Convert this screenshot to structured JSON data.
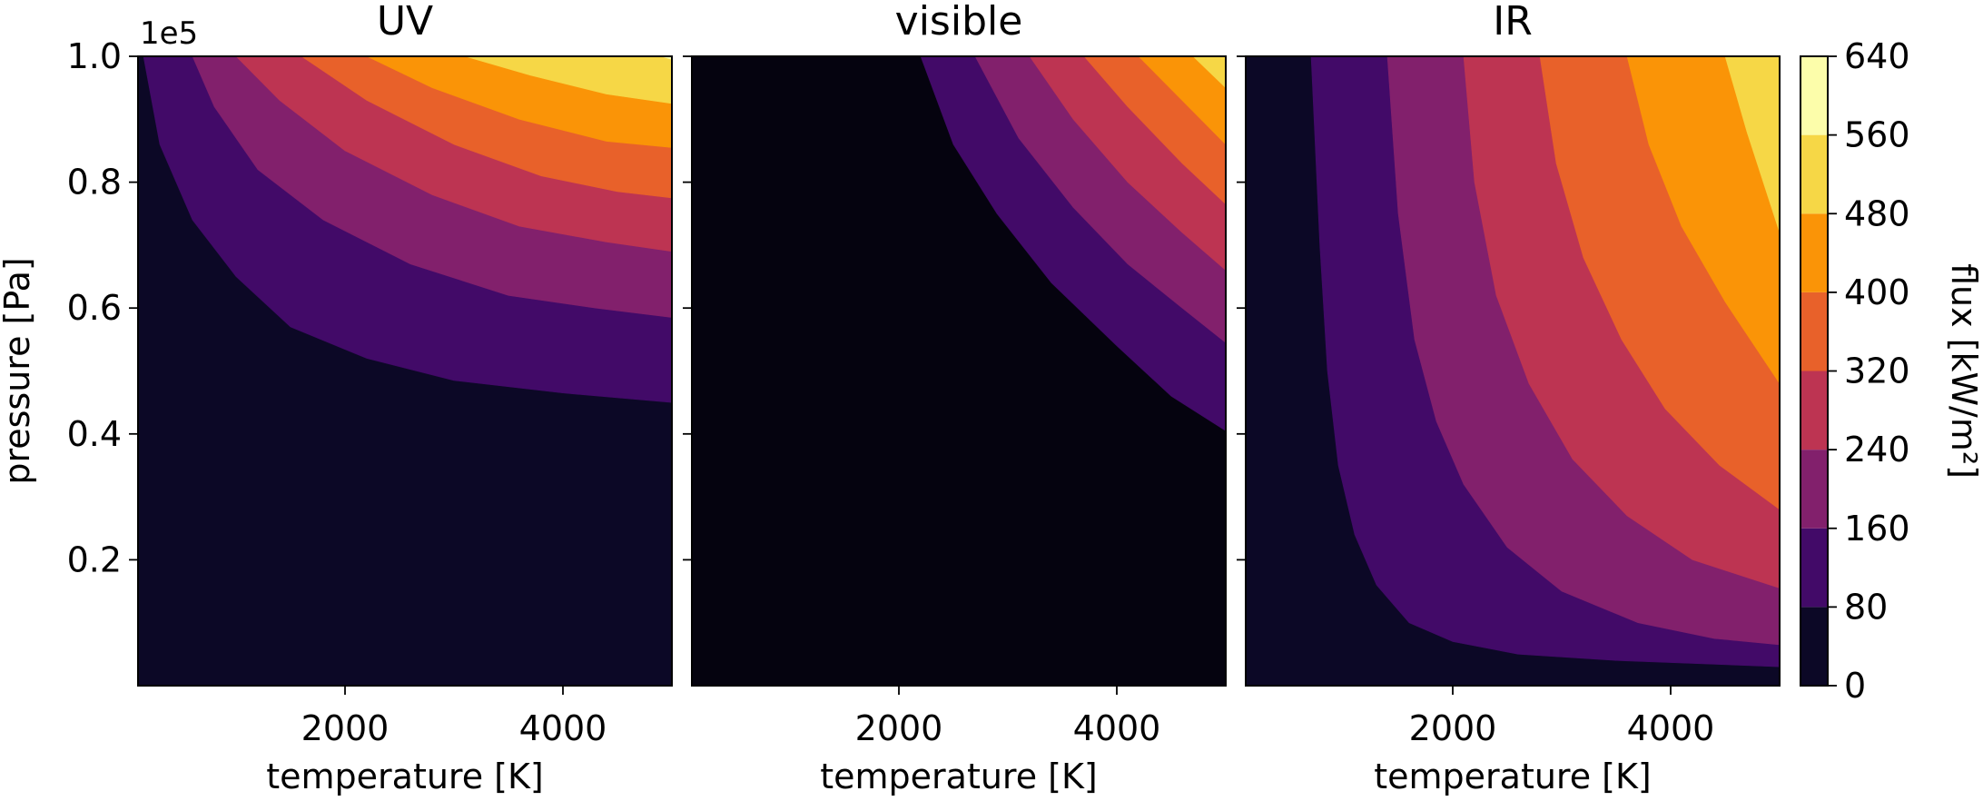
{
  "chart_data": {
    "type": "contour",
    "panels": [
      {
        "title": "UV",
        "xlabel": "temperature [K]",
        "ylabel": "pressure [Pa]",
        "y_offset_label": "1e5",
        "x_ticks": [
          2000,
          4000
        ],
        "x_tick_labels": [
          "2000",
          "4000"
        ],
        "y_ticks": [
          0.2,
          0.4,
          0.6,
          0.8,
          1.0
        ],
        "y_tick_labels": [
          "0.2",
          "0.4",
          "0.6",
          "0.8",
          "1.0"
        ],
        "boundaries": [
          {
            "level": 80,
            "points": [
              [
                150,
                1.0
              ],
              [
                300,
                0.86
              ],
              [
                600,
                0.74
              ],
              [
                1000,
                0.65
              ],
              [
                1500,
                0.57
              ],
              [
                2200,
                0.52
              ],
              [
                3000,
                0.485
              ],
              [
                4000,
                0.465
              ],
              [
                5000,
                0.45
              ]
            ]
          },
          {
            "level": 160,
            "points": [
              [
                600,
                1.0
              ],
              [
                800,
                0.92
              ],
              [
                1200,
                0.82
              ],
              [
                1800,
                0.74
              ],
              [
                2600,
                0.67
              ],
              [
                3500,
                0.62
              ],
              [
                4300,
                0.6
              ],
              [
                5000,
                0.585
              ]
            ]
          },
          {
            "level": 240,
            "points": [
              [
                1000,
                1.0
              ],
              [
                1400,
                0.93
              ],
              [
                2000,
                0.85
              ],
              [
                2800,
                0.78
              ],
              [
                3600,
                0.73
              ],
              [
                4400,
                0.705
              ],
              [
                5000,
                0.69
              ]
            ]
          },
          {
            "level": 320,
            "points": [
              [
                1600,
                1.0
              ],
              [
                2200,
                0.93
              ],
              [
                3000,
                0.86
              ],
              [
                3800,
                0.81
              ],
              [
                4500,
                0.785
              ],
              [
                5000,
                0.775
              ]
            ]
          },
          {
            "level": 400,
            "points": [
              [
                2200,
                1.0
              ],
              [
                2800,
                0.95
              ],
              [
                3600,
                0.9
              ],
              [
                4400,
                0.865
              ],
              [
                5000,
                0.855
              ]
            ]
          },
          {
            "level": 480,
            "points": [
              [
                3100,
                1.0
              ],
              [
                3700,
                0.97
              ],
              [
                4400,
                0.94
              ],
              [
                5000,
                0.925
              ]
            ]
          },
          {
            "level": 560,
            "points": [
              [
                4900,
                1.0
              ],
              [
                5000,
                0.995
              ]
            ]
          }
        ]
      },
      {
        "title": "visible",
        "xlabel": "temperature [K]",
        "x_ticks": [
          2000,
          4000
        ],
        "x_tick_labels": [
          "2000",
          "4000"
        ],
        "y_ticks": [
          0.2,
          0.4,
          0.6,
          0.8,
          1.0
        ],
        "boundaries": [
          {
            "level": 80,
            "points": [
              [
                2200,
                1.0
              ],
              [
                2500,
                0.86
              ],
              [
                2900,
                0.75
              ],
              [
                3400,
                0.64
              ],
              [
                4000,
                0.54
              ],
              [
                4500,
                0.46
              ],
              [
                5000,
                0.405
              ]
            ]
          },
          {
            "level": 160,
            "points": [
              [
                2700,
                1.0
              ],
              [
                3100,
                0.87
              ],
              [
                3600,
                0.76
              ],
              [
                4100,
                0.67
              ],
              [
                4600,
                0.6
              ],
              [
                5000,
                0.545
              ]
            ]
          },
          {
            "level": 240,
            "points": [
              [
                3200,
                1.0
              ],
              [
                3600,
                0.9
              ],
              [
                4100,
                0.8
              ],
              [
                4600,
                0.72
              ],
              [
                5000,
                0.66
              ]
            ]
          },
          {
            "level": 320,
            "points": [
              [
                3700,
                1.0
              ],
              [
                4100,
                0.92
              ],
              [
                4600,
                0.83
              ],
              [
                5000,
                0.765
              ]
            ]
          },
          {
            "level": 400,
            "points": [
              [
                4200,
                1.0
              ],
              [
                4600,
                0.93
              ],
              [
                5000,
                0.86
              ]
            ]
          },
          {
            "level": 480,
            "points": [
              [
                4700,
                1.0
              ],
              [
                5000,
                0.95
              ]
            ]
          }
        ]
      },
      {
        "title": "IR",
        "xlabel": "temperature [K]",
        "x_ticks": [
          2000,
          4000
        ],
        "x_tick_labels": [
          "2000",
          "4000"
        ],
        "y_ticks": [
          0.2,
          0.4,
          0.6,
          0.8,
          1.0
        ],
        "boundaries": [
          {
            "level": 80,
            "points": [
              [
                700,
                1.0
              ],
              [
                780,
                0.7
              ],
              [
                850,
                0.5
              ],
              [
                950,
                0.35
              ],
              [
                1100,
                0.24
              ],
              [
                1300,
                0.16
              ],
              [
                1600,
                0.1
              ],
              [
                2000,
                0.07
              ],
              [
                2600,
                0.05
              ],
              [
                3500,
                0.04
              ],
              [
                5000,
                0.03
              ]
            ]
          },
          {
            "level": 160,
            "points": [
              [
                1400,
                1.0
              ],
              [
                1500,
                0.75
              ],
              [
                1650,
                0.55
              ],
              [
                1850,
                0.42
              ],
              [
                2100,
                0.32
              ],
              [
                2500,
                0.22
              ],
              [
                3000,
                0.15
              ],
              [
                3700,
                0.1
              ],
              [
                4400,
                0.075
              ],
              [
                5000,
                0.065
              ]
            ]
          },
          {
            "level": 240,
            "points": [
              [
                2100,
                1.0
              ],
              [
                2200,
                0.8
              ],
              [
                2400,
                0.62
              ],
              [
                2700,
                0.48
              ],
              [
                3100,
                0.36
              ],
              [
                3600,
                0.27
              ],
              [
                4200,
                0.2
              ],
              [
                5000,
                0.155
              ]
            ]
          },
          {
            "level": 320,
            "points": [
              [
                2800,
                1.0
              ],
              [
                2950,
                0.83
              ],
              [
                3200,
                0.68
              ],
              [
                3550,
                0.55
              ],
              [
                3950,
                0.44
              ],
              [
                4450,
                0.35
              ],
              [
                5000,
                0.28
              ]
            ]
          },
          {
            "level": 400,
            "points": [
              [
                3600,
                1.0
              ],
              [
                3800,
                0.86
              ],
              [
                4100,
                0.73
              ],
              [
                4500,
                0.61
              ],
              [
                5000,
                0.48
              ]
            ]
          },
          {
            "level": 480,
            "points": [
              [
                4500,
                1.0
              ],
              [
                4700,
                0.88
              ],
              [
                5000,
                0.72
              ]
            ]
          }
        ]
      }
    ],
    "x_range": [
      100,
      5000
    ],
    "y_range": [
      0.0,
      1.0
    ],
    "colorbar": {
      "label": "flux [kW/m²]",
      "levels": [
        0,
        80,
        160,
        240,
        320,
        400,
        480,
        560,
        640
      ],
      "tick_labels": [
        "0",
        "80",
        "160",
        "240",
        "320",
        "400",
        "480",
        "560",
        "640"
      ],
      "colors": [
        "#0c0826",
        "#420a68",
        "#82206c",
        "#bd3452",
        "#e8612a",
        "#fa9407",
        "#f6d746",
        "#fcfdaa"
      ]
    },
    "visible_background_color": "#05030f"
  }
}
